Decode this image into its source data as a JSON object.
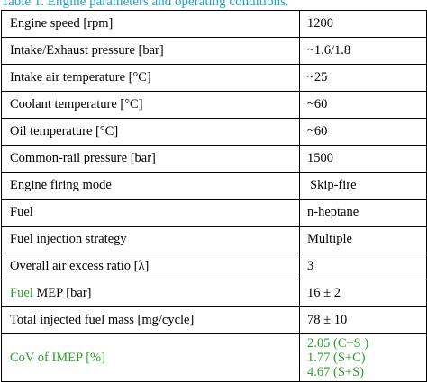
{
  "caption": "Table 1. Engine parameters and operating conditions.",
  "colors": {
    "caption": "#1aa0c8",
    "highlight": "#2ca02c",
    "border": "#000000"
  },
  "rows": [
    {
      "param": "Engine speed [rpm]",
      "value": "1200"
    },
    {
      "param": "Intake/Exhaust pressure [bar]",
      "value": "~1.6/1.8"
    },
    {
      "param": "Intake air temperature [°C]",
      "value": "~25"
    },
    {
      "param": "Coolant temperature [°C]",
      "value": "~60"
    },
    {
      "param": "Oil temperature [°C]",
      "value": "~60"
    },
    {
      "param": "Common-rail pressure [bar]",
      "value": "1500"
    },
    {
      "param": "Engine firing mode",
      "value": "Skip-fire"
    },
    {
      "param": "Fuel",
      "value": "n-heptane"
    },
    {
      "param": "Fuel injection strategy",
      "value": "Multiple"
    },
    {
      "param": "Overall air excess ratio [λ]",
      "value": "3"
    },
    {
      "param_highlight": "Fuel",
      "param_rest": " MEP [bar]",
      "value": "16 ± 2"
    },
    {
      "param": "Total injected fuel mass [mg/cycle]",
      "value": "78 ± 10"
    },
    {
      "param": "CoV of IMEP [%]",
      "values": [
        "2.05 (C+S )",
        "1.77 (S+C)",
        "4.67 (S+S)"
      ]
    }
  ]
}
